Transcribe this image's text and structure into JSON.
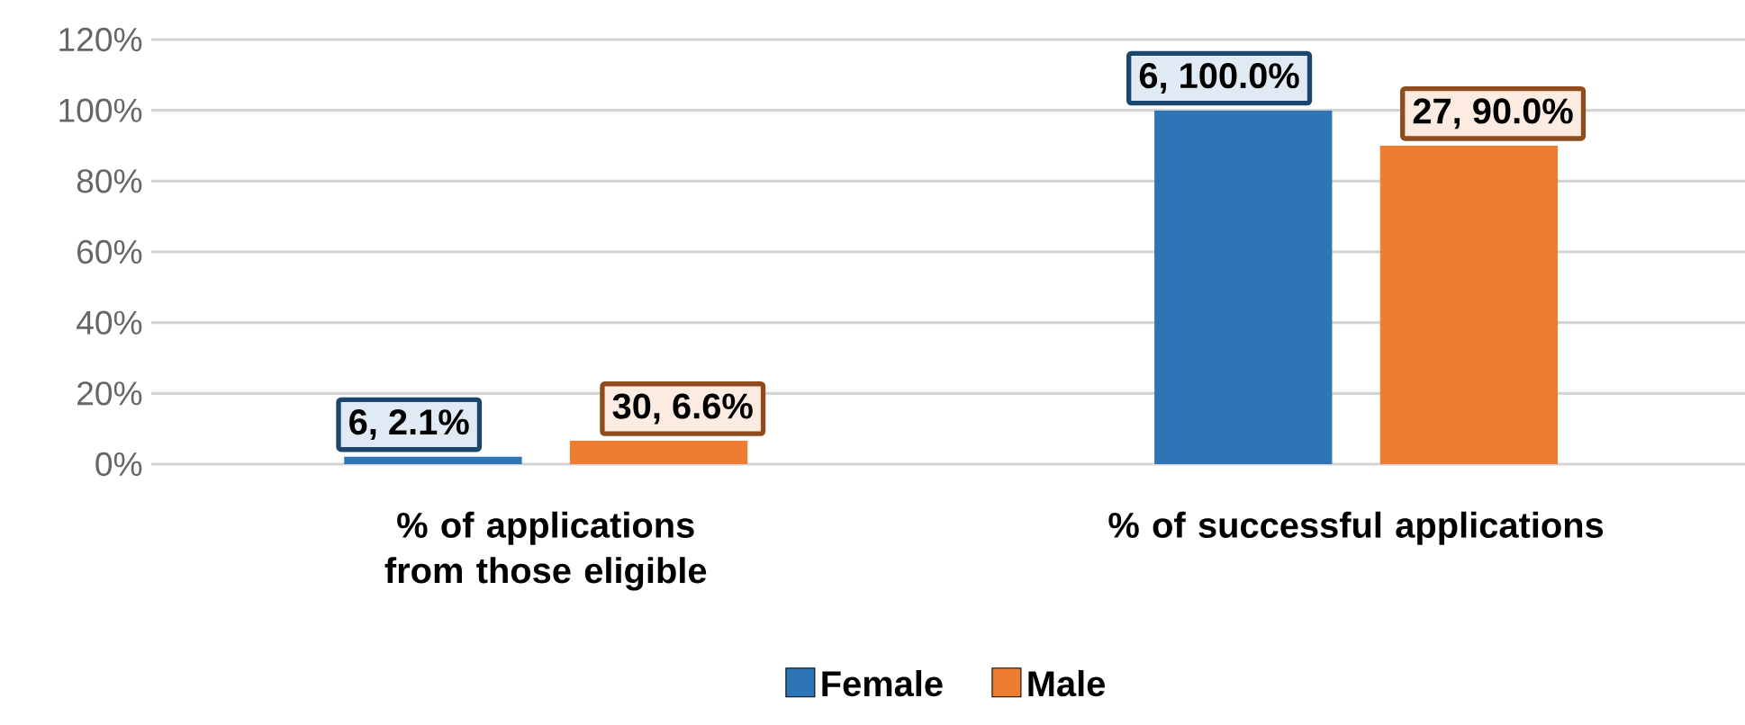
{
  "chart_data": {
    "type": "bar",
    "categories": [
      "%  of applications from those eligible",
      "% of successful applications"
    ],
    "series": [
      {
        "name": "Female",
        "color": "#2e75b6",
        "values": [
          2.1,
          100
        ],
        "value_labels": [
          "6, 2.1%",
          "6, 100.0%"
        ]
      },
      {
        "name": "Male",
        "color": "#ed7d31",
        "values": [
          6.6,
          90
        ],
        "value_labels": [
          "30, 6.6%",
          "27, 90.0%"
        ]
      }
    ],
    "ylim": [
      0,
      120
    ],
    "yticks": [
      {
        "value": 0,
        "label": "0%"
      },
      {
        "value": 20,
        "label": "20%"
      },
      {
        "value": 40,
        "label": "40%"
      },
      {
        "value": 60,
        "label": "60%"
      },
      {
        "value": 80,
        "label": "80%"
      },
      {
        "value": 100,
        "label": "100%"
      },
      {
        "value": 120,
        "label": "120%"
      }
    ],
    "grid": "y",
    "legend": "bottom"
  }
}
